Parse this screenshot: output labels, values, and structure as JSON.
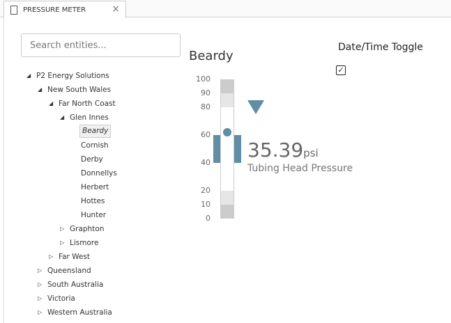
{
  "tab": {
    "title": "PRESSURE METER",
    "icon": "document-icon",
    "close": "×"
  },
  "search": {
    "placeholder": "Search entities..."
  },
  "tree": [
    {
      "label": "P2 Energy Solutions",
      "level": 0,
      "state": "expanded"
    },
    {
      "label": "New South Wales",
      "level": 1,
      "state": "expanded"
    },
    {
      "label": "Far North Coast",
      "level": 2,
      "state": "expanded"
    },
    {
      "label": "Glen Innes",
      "level": 3,
      "state": "expanded"
    },
    {
      "label": "Beardy",
      "level": 4,
      "state": "leaf",
      "selected": true
    },
    {
      "label": "Cornish",
      "level": 4,
      "state": "leaf"
    },
    {
      "label": "Derby",
      "level": 4,
      "state": "leaf"
    },
    {
      "label": "Donnellys",
      "level": 4,
      "state": "leaf"
    },
    {
      "label": "Herbert",
      "level": 4,
      "state": "leaf"
    },
    {
      "label": "Hottes",
      "level": 4,
      "state": "leaf"
    },
    {
      "label": "Hunter",
      "level": 4,
      "state": "leaf"
    },
    {
      "label": "Graphton",
      "level": 3,
      "state": "collapsed"
    },
    {
      "label": "Lismore",
      "level": 3,
      "state": "collapsed"
    },
    {
      "label": "Far West",
      "level": 2,
      "state": "collapsed"
    },
    {
      "label": "Queensland",
      "level": 1,
      "state": "collapsed"
    },
    {
      "label": "South Australia",
      "level": 1,
      "state": "collapsed"
    },
    {
      "label": "Victoria",
      "level": 1,
      "state": "collapsed"
    },
    {
      "label": "Western Australia",
      "level": 1,
      "state": "collapsed"
    }
  ],
  "meter": {
    "title": "Beardy",
    "value": "35.39",
    "unit": "psi",
    "label": "Tubing Head Pressure",
    "ticks": [
      "100",
      "90",
      "80",
      "60",
      "40",
      "20",
      "10",
      "0"
    ],
    "tick_values": [
      100,
      90,
      80,
      60,
      40,
      20,
      10,
      0
    ],
    "range": [
      0,
      100
    ],
    "bands": [
      {
        "from": 0,
        "to": 10,
        "color": "#cccccc"
      },
      {
        "from": 10,
        "to": 20,
        "color": "#e6e6e6"
      },
      {
        "from": 80,
        "to": 90,
        "color": "#e6e6e6"
      },
      {
        "from": 90,
        "to": 100,
        "color": "#cccccc"
      }
    ],
    "block_range": [
      40,
      60
    ],
    "dot_value": 62,
    "target_value": 80,
    "accent": "#5f8ea5"
  },
  "toggle": {
    "label": "Date/Time Toggle",
    "checked": true,
    "mark": "✓"
  }
}
